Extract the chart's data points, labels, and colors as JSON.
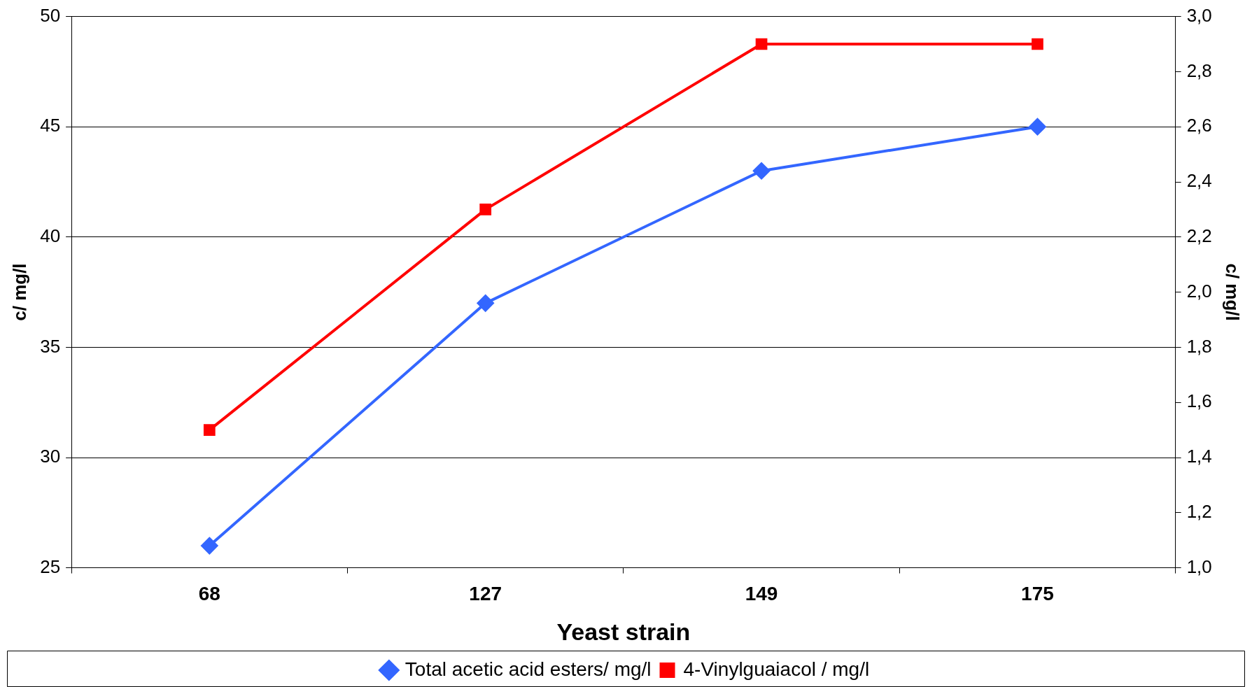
{
  "chart_data": {
    "type": "line",
    "xlabel": "Yeast strain",
    "ylabel": "c/ mg/l",
    "y2label": "c/ mg/l",
    "categories": [
      "68",
      "127",
      "149",
      "175"
    ],
    "series": [
      {
        "name": "Total acetic acid esters/ mg/l",
        "color": "#3366ff",
        "marker": "diamond",
        "values": [
          26,
          37,
          43,
          45
        ]
      },
      {
        "name": "4-Vinylguaiacol / mg/l",
        "color": "#ff0000",
        "marker": "square",
        "axis": "y2",
        "values": [
          1.5,
          2.3,
          2.9,
          2.9
        ]
      }
    ],
    "ylim": [
      25,
      50
    ],
    "yticks": [
      25,
      30,
      35,
      40,
      45,
      50
    ],
    "y2lim": [
      1.0,
      3.0
    ],
    "y2ticks": [
      {
        "value": 1.0,
        "label": "1,0"
      },
      {
        "value": 1.2,
        "label": "1,2"
      },
      {
        "value": 1.4,
        "label": "1,4"
      },
      {
        "value": 1.6,
        "label": "1,6"
      },
      {
        "value": 1.8,
        "label": "1,8"
      },
      {
        "value": 2.0,
        "label": "2,0"
      },
      {
        "value": 2.2,
        "label": "2,2"
      },
      {
        "value": 2.4,
        "label": "2,4"
      },
      {
        "value": 2.6,
        "label": "2,6"
      },
      {
        "value": 2.8,
        "label": "2,8"
      },
      {
        "value": 3.0,
        "label": "3,0"
      }
    ],
    "grid": "y",
    "legend": "bottom",
    "line_style": "solid"
  }
}
